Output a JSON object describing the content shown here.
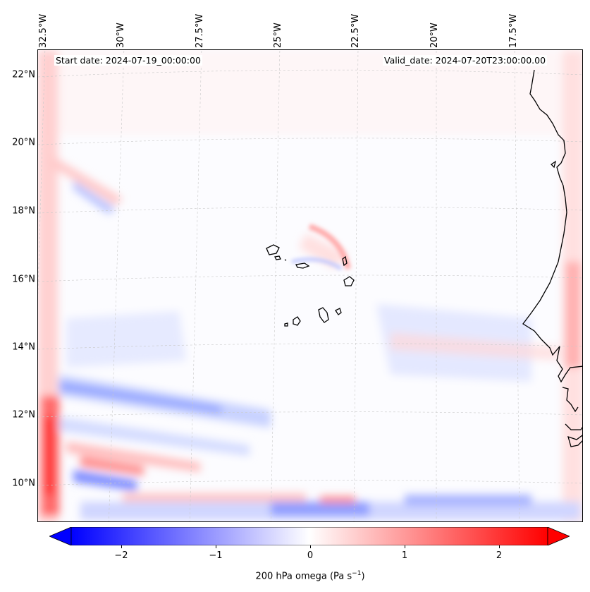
{
  "header": {
    "start_date": "Start date: 2024-07-19_00:00:00",
    "valid_date": "Valid_date: 2024-07-20T23:00:00.00"
  },
  "axes": {
    "longitude_labels": [
      "32.5°W",
      "30°W",
      "27.5°W",
      "25°W",
      "22.5°W",
      "20°W",
      "17.5°W"
    ],
    "latitude_labels": [
      "22°N",
      "20°N",
      "18°N",
      "16°N",
      "14°N",
      "12°N",
      "10°N"
    ]
  },
  "colorbar": {
    "label_prefix": "200 hPa omega (Pa s",
    "label_exp": "−1",
    "label_suffix": ")",
    "ticks": [
      "−2",
      "−1",
      "0",
      "1",
      "2"
    ],
    "range": [
      -2.6,
      2.6
    ],
    "colormap": "bwr",
    "low_color": "#0000ff",
    "mid_color": "#ffffff",
    "high_color": "#ff0000"
  }
}
